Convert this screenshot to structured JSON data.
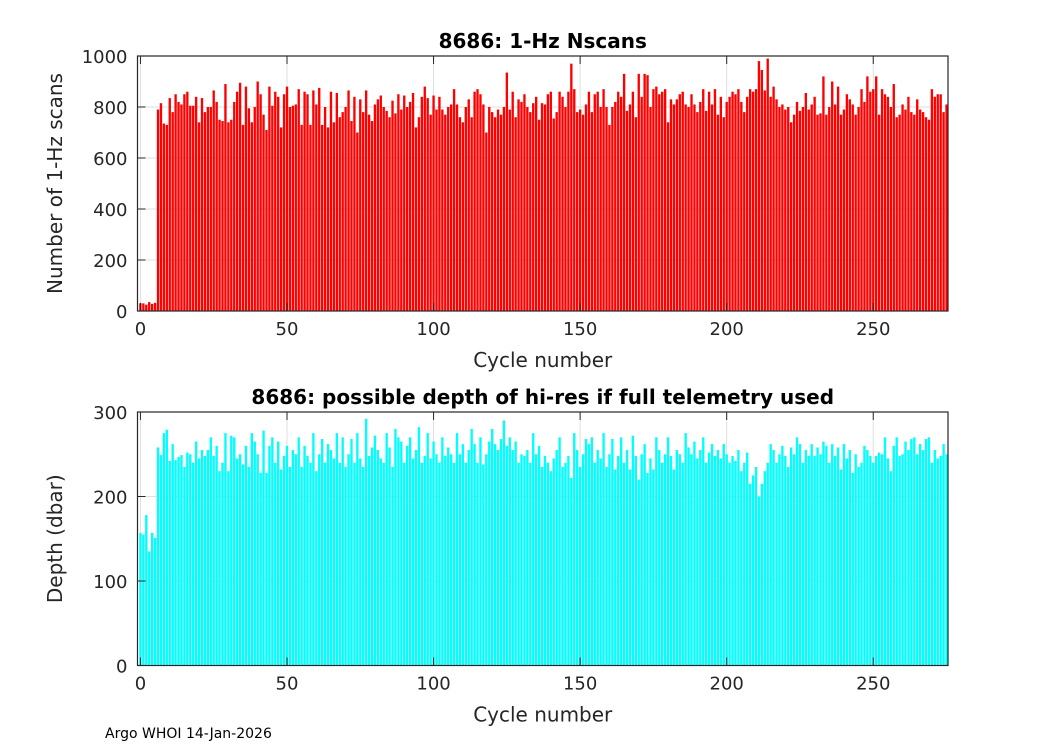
{
  "chart_data": [
    {
      "type": "bar",
      "title": "8686: 1-Hz Nscans",
      "xlabel": "Cycle number",
      "ylabel": "Number of 1-Hz scans",
      "xlim": [
        -1,
        275.5
      ],
      "ylim": [
        0,
        1000
      ],
      "xticks": [
        0,
        50,
        100,
        150,
        200,
        250
      ],
      "yticks": [
        0,
        200,
        400,
        600,
        800,
        1000
      ],
      "grid": true,
      "color": "#ff0000",
      "x_start": 0,
      "values": [
        30,
        30,
        25,
        35,
        28,
        32,
        790,
        815,
        735,
        730,
        835,
        780,
        850,
        820,
        810,
        850,
        860,
        805,
        805,
        840,
        740,
        835,
        780,
        800,
        800,
        865,
        820,
        750,
        745,
        890,
        740,
        750,
        820,
        860,
        895,
        730,
        880,
        795,
        740,
        800,
        900,
        850,
        770,
        710,
        880,
        805,
        860,
        840,
        720,
        850,
        880,
        800,
        805,
        810,
        870,
        730,
        860,
        850,
        730,
        865,
        810,
        875,
        730,
        800,
        720,
        860,
        740,
        855,
        760,
        780,
        800,
        865,
        745,
        840,
        700,
        830,
        780,
        865,
        770,
        745,
        810,
        830,
        845,
        800,
        785,
        760,
        825,
        775,
        850,
        790,
        845,
        800,
        820,
        855,
        720,
        760,
        840,
        880,
        835,
        770,
        845,
        790,
        840,
        790,
        770,
        800,
        810,
        870,
        810,
        760,
        740,
        800,
        830,
        760,
        860,
        870,
        850,
        810,
        700,
        800,
        780,
        760,
        790,
        770,
        800,
        935,
        790,
        860,
        760,
        830,
        820,
        850,
        800,
        780,
        815,
        840,
        750,
        815,
        810,
        850,
        860,
        755,
        780,
        860,
        840,
        800,
        860,
        970,
        870,
        780,
        790,
        770,
        810,
        860,
        780,
        850,
        860,
        800,
        870,
        800,
        730,
        800,
        820,
        860,
        840,
        930,
        785,
        810,
        860,
        760,
        930,
        840,
        930,
        925,
        800,
        870,
        880,
        850,
        860,
        870,
        740,
        830,
        810,
        830,
        850,
        860,
        810,
        800,
        850,
        810,
        780,
        820,
        870,
        785,
        860,
        810,
        870,
        770,
        840,
        760,
        820,
        840,
        860,
        850,
        870,
        820,
        780,
        840,
        870,
        860,
        870,
        980,
        945,
        865,
        990,
        840,
        880,
        830,
        800,
        810,
        790,
        800,
        740,
        770,
        820,
        785,
        800,
        855,
        790,
        810,
        840,
        770,
        775,
        920,
        770,
        800,
        900,
        810,
        880,
        770,
        790,
        850,
        830,
        810,
        770,
        800,
        870,
        820,
        920,
        860,
        870,
        920,
        770,
        870,
        850,
        840,
        800,
        890,
        760,
        770,
        810,
        790,
        840,
        780,
        770,
        830,
        790,
        780,
        760,
        750,
        870,
        840,
        850,
        850,
        780,
        810
      ]
    },
    {
      "type": "bar",
      "title": "8686: possible depth of hi-res if full telemetry used",
      "xlabel": "Cycle number",
      "ylabel": "Depth (dbar)",
      "xlim": [
        -1,
        275.5
      ],
      "ylim": [
        0,
        300
      ],
      "xticks": [
        0,
        50,
        100,
        150,
        200,
        250
      ],
      "yticks": [
        0,
        100,
        200,
        300
      ],
      "grid": true,
      "color": "#00ffff",
      "x_start": 0,
      "values": [
        157,
        155,
        178,
        135,
        157,
        151,
        258,
        249,
        275,
        279,
        242,
        262,
        243,
        247,
        249,
        235,
        252,
        250,
        240,
        265,
        245,
        255,
        248,
        255,
        270,
        248,
        260,
        230,
        240,
        275,
        230,
        272,
        270,
        245,
        250,
        238,
        260,
        235,
        275,
        265,
        250,
        228,
        278,
        228,
        260,
        270,
        240,
        265,
        232,
        248,
        260,
        235,
        255,
        250,
        270,
        235,
        260,
        248,
        240,
        275,
        230,
        250,
        268,
        240,
        262,
        255,
        245,
        275,
        240,
        270,
        235,
        250,
        268,
        240,
        275,
        245,
        235,
        292,
        248,
        258,
        272,
        255,
        245,
        240,
        275,
        258,
        235,
        280,
        270,
        265,
        240,
        260,
        270,
        245,
        255,
        282,
        240,
        248,
        275,
        245,
        265,
        250,
        240,
        270,
        248,
        258,
        250,
        240,
        275,
        250,
        262,
        240,
        255,
        280,
        262,
        240,
        270,
        238,
        250,
        265,
        280,
        262,
        255,
        268,
        290,
        260,
        270,
        255,
        265,
        240,
        250,
        248,
        255,
        240,
        275,
        250,
        260,
        235,
        248,
        240,
        230,
        245,
        255,
        270,
        235,
        240,
        248,
        222,
        275,
        255,
        235,
        250,
        268,
        262,
        270,
        240,
        255,
        245,
        275,
        235,
        250,
        268,
        232,
        248,
        270,
        240,
        255,
        232,
        272,
        248,
        220,
        250,
        262,
        228,
        245,
        232,
        270,
        255,
        240,
        250,
        270,
        248,
        232,
        255,
        250,
        240,
        275,
        258,
        250,
        265,
        245,
        255,
        270,
        240,
        252,
        262,
        248,
        255,
        245,
        262,
        250,
        240,
        248,
        242,
        255,
        230,
        240,
        252,
        215,
        225,
        235,
        200,
        215,
        230,
        240,
        262,
        255,
        240,
        250,
        260,
        248,
        235,
        258,
        250,
        270,
        262,
        240,
        255,
        248,
        262,
        248,
        258,
        250,
        265,
        260,
        240,
        262,
        248,
        258,
        232,
        262,
        245,
        255,
        228,
        250,
        235,
        240,
        260,
        255,
        248,
        240,
        248,
        252,
        250,
        270,
        245,
        230,
        260,
        270,
        248,
        250,
        265,
        255,
        268,
        270,
        250,
        262,
        255,
        268,
        270,
        240,
        255,
        245,
        248,
        262,
        250
      ]
    }
  ],
  "footer": "Argo WHOI 14-Jan-2026"
}
